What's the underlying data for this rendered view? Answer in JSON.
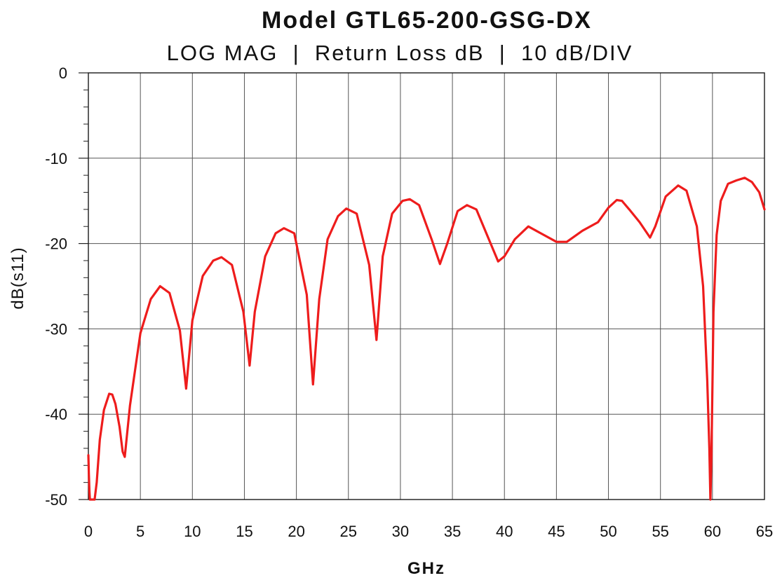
{
  "chart_data": {
    "type": "line",
    "title": "Model GTL65-200-GSG-DX",
    "subtitle": "LOG MAG  |  Return Loss dB  |  10 dB/DIV",
    "xlabel": "GHz",
    "ylabel": "dB(s11)",
    "xlim": [
      0,
      65
    ],
    "ylim": [
      -50,
      0
    ],
    "x_ticks": [
      0,
      5,
      10,
      15,
      20,
      25,
      30,
      35,
      40,
      45,
      50,
      55,
      60,
      65
    ],
    "x_tick_labels": [
      "0",
      "5",
      "10",
      "15",
      "20",
      "25",
      "30",
      "35",
      "40",
      "45",
      "50",
      "55",
      "60",
      "65"
    ],
    "y_ticks": [
      0,
      -10,
      -20,
      -30,
      -40,
      -50
    ],
    "y_tick_labels": [
      "0",
      "-10",
      "-20",
      "-30",
      "-40",
      "-50"
    ],
    "y_minor_step": 2,
    "grid": true,
    "line_color": "#ee1c1c",
    "series": [
      {
        "x": [
          0.0,
          0.05,
          0.1,
          0.15,
          0.2,
          0.6,
          0.8,
          1.1,
          1.5,
          2.0,
          2.3,
          2.6,
          3.0,
          3.3,
          3.5,
          4.0,
          5.0,
          6.0,
          6.9,
          7.8,
          8.8,
          9.4,
          10.0,
          11.0,
          12.0,
          12.8,
          13.8,
          14.9,
          15.5,
          16.0,
          17.0,
          18.0,
          18.8,
          19.8,
          21.0,
          21.6,
          22.2,
          23.0,
          24.0,
          24.8,
          25.8,
          27.0,
          27.7,
          28.3,
          29.2,
          30.2,
          30.9,
          31.8,
          33.0,
          33.8,
          34.5,
          35.5,
          36.4,
          37.3,
          38.5,
          39.4,
          40.0,
          41.0,
          42.3,
          43.5,
          45.0,
          46.0,
          47.5,
          49.0,
          50.0,
          50.8,
          51.3,
          52.0,
          53.0,
          54.0,
          54.5,
          55.5,
          56.7,
          57.5,
          58.5,
          59.1,
          59.5,
          59.7,
          59.8,
          59.9,
          60.1,
          60.4,
          60.8,
          61.5,
          62.3,
          63.1,
          63.8,
          64.5,
          65.0
        ],
        "y": [
          -44.8,
          -47.0,
          -49.0,
          -50.0,
          -50.0,
          -50.0,
          -48.0,
          -43.0,
          -39.5,
          -37.6,
          -37.7,
          -38.8,
          -41.5,
          -44.4,
          -45.0,
          -39.0,
          -30.5,
          -26.5,
          -25.0,
          -25.8,
          -30.2,
          -37.0,
          -29.0,
          -23.8,
          -22.0,
          -21.6,
          -22.5,
          -28.0,
          -34.3,
          -28.0,
          -21.5,
          -18.8,
          -18.2,
          -18.8,
          -26.0,
          -36.5,
          -26.5,
          -19.5,
          -16.8,
          -15.9,
          -16.5,
          -22.5,
          -31.3,
          -21.5,
          -16.5,
          -15.0,
          -14.8,
          -15.5,
          -19.5,
          -22.4,
          -20.0,
          -16.2,
          -15.5,
          -16.0,
          -19.5,
          -22.1,
          -21.5,
          -19.5,
          -18.0,
          -18.8,
          -19.8,
          -19.8,
          -18.5,
          -17.5,
          -15.8,
          -14.9,
          -15.0,
          -16.0,
          -17.5,
          -19.3,
          -18.0,
          -14.5,
          -13.2,
          -13.8,
          -18.0,
          -25.0,
          -36.0,
          -44.0,
          -50.0,
          -45.0,
          -28.0,
          -19.0,
          -15.0,
          -13.0,
          -12.6,
          -12.3,
          -12.8,
          -14.0,
          -16.0
        ]
      }
    ]
  }
}
